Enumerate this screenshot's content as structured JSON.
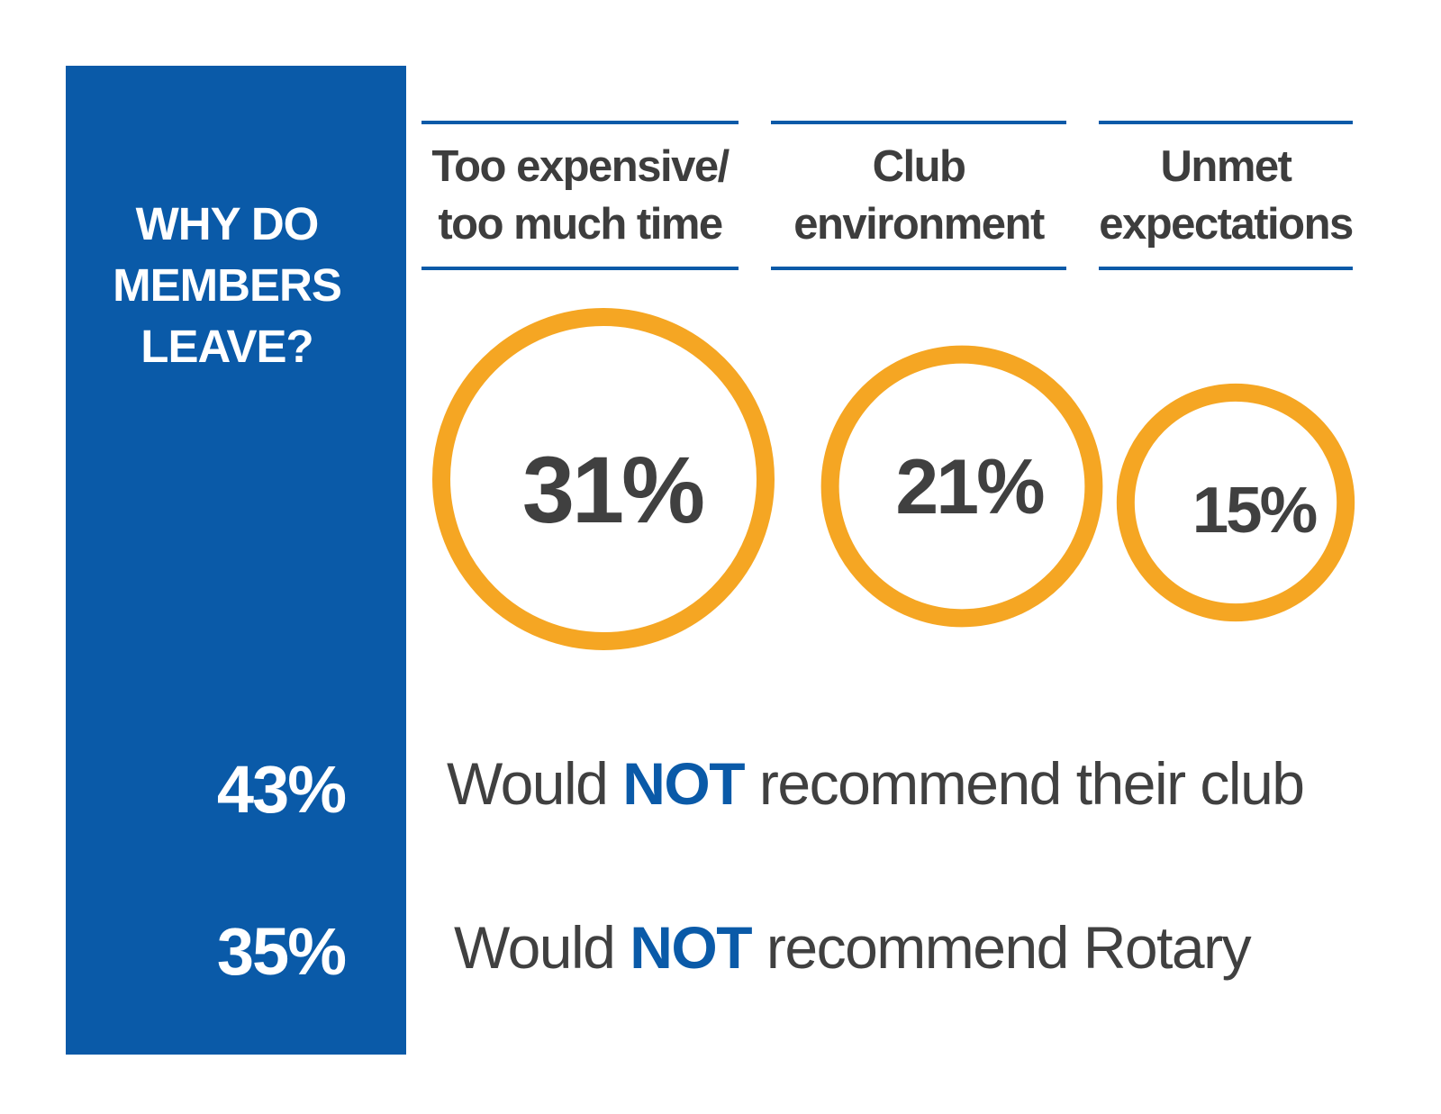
{
  "sidebar": {
    "title_lines": [
      "WHY DO",
      "MEMBERS",
      "LEAVE?"
    ],
    "background_color": "#0a5aa8"
  },
  "chart_data": {
    "type": "bubble",
    "title": "WHY DO MEMBERS LEAVE?",
    "categories": [
      "Too expensive/ too much time",
      "Club environment",
      "Unmet expectations"
    ],
    "category_lines": [
      [
        "Too expensive/",
        "too much time"
      ],
      [
        "Club",
        "environment"
      ],
      [
        "Unmet",
        "expectations"
      ]
    ],
    "values": [
      31,
      21,
      15
    ],
    "value_labels": [
      "31%",
      "21%",
      "15%"
    ],
    "unit": "%",
    "ring_color": "#f5a623",
    "rule_color": "#0a5aa8"
  },
  "stats": [
    {
      "value": "43%",
      "prefix": "Would ",
      "emphasis": "NOT",
      "suffix": " recommend their club"
    },
    {
      "value": "35%",
      "prefix": "Would ",
      "emphasis": "NOT",
      "suffix": " recommend Rotary"
    }
  ],
  "colors": {
    "accent_blue": "#0a5aa8",
    "ring_orange": "#f5a623",
    "text_dark": "#404040"
  }
}
